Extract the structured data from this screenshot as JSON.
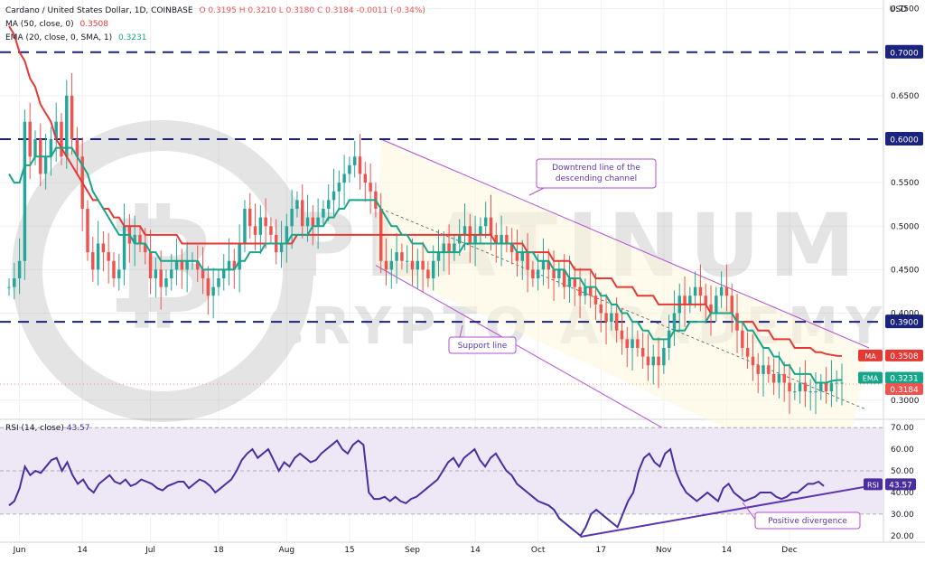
{
  "header": {
    "instrument": "Cardano / United States Dollar, 1D, COINBASE",
    "ohlc": "O 0.3195  H 0.3210  L 0.3180  C 0.3184  -0.0011 (-0.34%)",
    "ma_label": "MA (50, close, 0)",
    "ma_value": "0.3508",
    "ema_label": "EMA (20, close, 0, SMA, 1)",
    "ema_value": "0.3231",
    "currency": "USD"
  },
  "colors": {
    "candle_up": "#26a69a",
    "candle_down": "#ef5350",
    "ma_line": "#e53935",
    "ema_line": "#17a589",
    "channel": "#b44fd1",
    "rsi_line": "#4a2ea0",
    "rsi_band": "#ede7f6",
    "level_line": "#1a237e",
    "watermark": "#9e9e9e"
  },
  "chart_data": [
    {
      "type": "candlestick",
      "title": "Cardano / United States Dollar, 1D, COINBASE",
      "y_ticks": [
        "0.7500",
        "0.6500",
        "0.5500",
        "0.5000",
        "0.4500",
        "0.4000",
        "0.3000"
      ],
      "ylim": [
        0.28,
        0.76
      ],
      "x_ticks": [
        "Jun",
        "14",
        "Jul",
        "18",
        "Aug",
        "15",
        "Sep",
        "14",
        "Oct",
        "17",
        "Nov",
        "14",
        "Dec"
      ],
      "grid": true,
      "levels": [
        {
          "value": 0.7,
          "label": "0.7000"
        },
        {
          "value": 0.6,
          "label": "0.6000"
        },
        {
          "value": 0.39,
          "label": "0.3900"
        }
      ],
      "price_tags": [
        {
          "name": "MA",
          "value": "0.3508"
        },
        {
          "name": "EMA",
          "value": "0.3231"
        },
        {
          "name": "",
          "value": "0.3184"
        }
      ],
      "annotations": [
        "Downtrend line of the descending channel",
        "Support line"
      ],
      "closes": [
        0.43,
        0.44,
        0.46,
        0.62,
        0.58,
        0.6,
        0.56,
        0.58,
        0.6,
        0.62,
        0.58,
        0.65,
        0.6,
        0.58,
        0.52,
        0.47,
        0.45,
        0.48,
        0.47,
        0.46,
        0.44,
        0.45,
        0.5,
        0.48,
        0.49,
        0.48,
        0.47,
        0.44,
        0.45,
        0.43,
        0.44,
        0.45,
        0.46,
        0.45,
        0.46,
        0.46,
        0.45,
        0.44,
        0.42,
        0.43,
        0.44,
        0.45,
        0.46,
        0.45,
        0.48,
        0.52,
        0.5,
        0.49,
        0.51,
        0.5,
        0.49,
        0.47,
        0.48,
        0.5,
        0.52,
        0.53,
        0.5,
        0.51,
        0.5,
        0.51,
        0.52,
        0.53,
        0.54,
        0.55,
        0.56,
        0.57,
        0.58,
        0.56,
        0.55,
        0.54,
        0.52,
        0.46,
        0.45,
        0.46,
        0.47,
        0.46,
        0.46,
        0.45,
        0.46,
        0.45,
        0.44,
        0.46,
        0.47,
        0.48,
        0.47,
        0.48,
        0.49,
        0.5,
        0.48,
        0.49,
        0.5,
        0.51,
        0.49,
        0.48,
        0.49,
        0.48,
        0.47,
        0.46,
        0.47,
        0.45,
        0.44,
        0.45,
        0.46,
        0.45,
        0.44,
        0.45,
        0.43,
        0.44,
        0.43,
        0.42,
        0.43,
        0.42,
        0.41,
        0.4,
        0.39,
        0.4,
        0.38,
        0.37,
        0.36,
        0.37,
        0.36,
        0.35,
        0.34,
        0.35,
        0.34,
        0.36,
        0.38,
        0.4,
        0.42,
        0.41,
        0.42,
        0.43,
        0.42,
        0.41,
        0.4,
        0.42,
        0.43,
        0.42,
        0.4,
        0.38,
        0.36,
        0.35,
        0.34,
        0.33,
        0.34,
        0.33,
        0.32,
        0.33,
        0.32,
        0.31,
        0.31,
        0.32,
        0.31,
        0.31,
        0.31,
        0.32,
        0.31,
        0.32,
        0.32,
        0.32
      ],
      "ma50": [
        0.73,
        0.72,
        0.7,
        0.69,
        0.67,
        0.66,
        0.64,
        0.63,
        0.62,
        0.6,
        0.59,
        0.58,
        0.57,
        0.56,
        0.55,
        0.54,
        0.53,
        0.53,
        0.52,
        0.52,
        0.51,
        0.51,
        0.5,
        0.5,
        0.5,
        0.5,
        0.49,
        0.49,
        0.49,
        0.49,
        0.49,
        0.49,
        0.49,
        0.48,
        0.48,
        0.48,
        0.48,
        0.48,
        0.48,
        0.48,
        0.48,
        0.48,
        0.48,
        0.48,
        0.48,
        0.48,
        0.48,
        0.48,
        0.48,
        0.48,
        0.48,
        0.48,
        0.48,
        0.48,
        0.48,
        0.49,
        0.49,
        0.49,
        0.49,
        0.49,
        0.49,
        0.49,
        0.49,
        0.49,
        0.49,
        0.49,
        0.49,
        0.49,
        0.49,
        0.49,
        0.49,
        0.49,
        0.49,
        0.49,
        0.49,
        0.49,
        0.49,
        0.49,
        0.49,
        0.49,
        0.49,
        0.49,
        0.49,
        0.49,
        0.49,
        0.49,
        0.49,
        0.49,
        0.49,
        0.49,
        0.49,
        0.49,
        0.49,
        0.48,
        0.48,
        0.48,
        0.48,
        0.48,
        0.48,
        0.47,
        0.47,
        0.47,
        0.47,
        0.47,
        0.46,
        0.46,
        0.46,
        0.46,
        0.45,
        0.45,
        0.45,
        0.45,
        0.44,
        0.44,
        0.44,
        0.44,
        0.43,
        0.43,
        0.43,
        0.43,
        0.42,
        0.42,
        0.42,
        0.42,
        0.41,
        0.41,
        0.41,
        0.41,
        0.41,
        0.41,
        0.41,
        0.41,
        0.41,
        0.41,
        0.4,
        0.4,
        0.4,
        0.4,
        0.4,
        0.39,
        0.39,
        0.39,
        0.39,
        0.38,
        0.38,
        0.38,
        0.37,
        0.37,
        0.37,
        0.37,
        0.36,
        0.36,
        0.36,
        0.36,
        0.355,
        0.355,
        0.353,
        0.352,
        0.351,
        0.3508
      ],
      "ema20": [
        0.56,
        0.55,
        0.55,
        0.57,
        0.57,
        0.58,
        0.58,
        0.58,
        0.58,
        0.59,
        0.59,
        0.59,
        0.59,
        0.58,
        0.57,
        0.56,
        0.54,
        0.53,
        0.52,
        0.51,
        0.5,
        0.49,
        0.49,
        0.49,
        0.48,
        0.48,
        0.48,
        0.47,
        0.47,
        0.46,
        0.46,
        0.46,
        0.46,
        0.46,
        0.46,
        0.46,
        0.46,
        0.45,
        0.45,
        0.45,
        0.45,
        0.45,
        0.45,
        0.45,
        0.46,
        0.46,
        0.47,
        0.47,
        0.47,
        0.48,
        0.48,
        0.48,
        0.48,
        0.48,
        0.49,
        0.49,
        0.49,
        0.49,
        0.5,
        0.5,
        0.5,
        0.51,
        0.51,
        0.52,
        0.52,
        0.53,
        0.53,
        0.53,
        0.53,
        0.53,
        0.53,
        0.52,
        0.51,
        0.5,
        0.5,
        0.49,
        0.49,
        0.48,
        0.48,
        0.48,
        0.47,
        0.47,
        0.47,
        0.47,
        0.47,
        0.47,
        0.47,
        0.48,
        0.48,
        0.48,
        0.48,
        0.48,
        0.48,
        0.48,
        0.48,
        0.48,
        0.48,
        0.47,
        0.47,
        0.47,
        0.47,
        0.46,
        0.46,
        0.46,
        0.45,
        0.45,
        0.45,
        0.44,
        0.44,
        0.44,
        0.43,
        0.43,
        0.43,
        0.42,
        0.42,
        0.41,
        0.41,
        0.4,
        0.4,
        0.39,
        0.39,
        0.38,
        0.38,
        0.37,
        0.37,
        0.37,
        0.37,
        0.38,
        0.38,
        0.38,
        0.39,
        0.39,
        0.39,
        0.39,
        0.4,
        0.4,
        0.4,
        0.4,
        0.4,
        0.39,
        0.39,
        0.38,
        0.38,
        0.37,
        0.36,
        0.36,
        0.35,
        0.35,
        0.34,
        0.34,
        0.33,
        0.33,
        0.33,
        0.33,
        0.32,
        0.32,
        0.32,
        0.322,
        0.323,
        0.3231
      ]
    },
    {
      "type": "line",
      "title": "RSI (14, close)",
      "value": "43.57",
      "y_ticks": [
        "70.00",
        "60.00",
        "50.00",
        "40.00",
        "30.00",
        "20.00"
      ],
      "ylim": [
        17,
        73
      ],
      "band": [
        30,
        70
      ],
      "annotations": [
        "Positive divergence"
      ],
      "values": [
        34,
        36,
        42,
        52,
        48,
        50,
        49,
        52,
        55,
        56,
        50,
        54,
        48,
        44,
        46,
        42,
        40,
        44,
        46,
        48,
        45,
        44,
        46,
        43,
        44,
        46,
        45,
        44,
        42,
        41,
        43,
        44,
        45,
        45,
        42,
        44,
        46,
        45,
        43,
        40,
        42,
        44,
        46,
        50,
        55,
        58,
        60,
        56,
        58,
        60,
        55,
        50,
        54,
        52,
        56,
        58,
        56,
        54,
        55,
        58,
        60,
        62,
        64,
        60,
        58,
        62,
        64,
        62,
        40,
        37,
        37,
        38,
        36,
        38,
        36,
        35,
        37,
        38,
        40,
        42,
        44,
        46,
        50,
        54,
        56,
        52,
        56,
        58,
        60,
        55,
        52,
        56,
        58,
        54,
        50,
        48,
        44,
        42,
        40,
        38,
        36,
        35,
        34,
        32,
        28,
        26,
        24,
        22,
        20,
        24,
        30,
        32,
        30,
        28,
        26,
        24,
        30,
        36,
        40,
        50,
        56,
        58,
        54,
        52,
        58,
        60,
        50,
        44,
        40,
        38,
        36,
        38,
        40,
        38,
        36,
        42,
        44,
        40,
        38,
        36,
        37,
        38,
        40,
        40,
        40,
        38,
        37,
        38,
        40,
        40,
        42,
        44,
        44,
        45,
        43
      ]
    }
  ]
}
